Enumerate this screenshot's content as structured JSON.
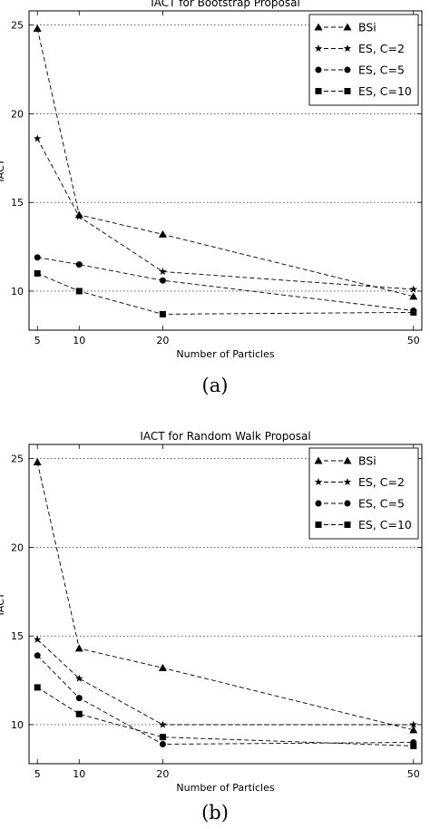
{
  "chart_data": [
    {
      "type": "line",
      "title": "IACT for Bootstrap Proposal",
      "xlabel": "Number of Particles",
      "ylabel": "IACT",
      "x": [
        5,
        10,
        20,
        50
      ],
      "xticks": [
        "5",
        "10",
        "20",
        "50"
      ],
      "yticks": [
        "10",
        "15",
        "20",
        "25"
      ],
      "xlim": [
        4,
        51
      ],
      "ylim": [
        7.8,
        25.8
      ],
      "grid": "horizontal",
      "legend_position": "top-right",
      "caption": "(a)",
      "series": [
        {
          "name": "BSi",
          "marker": "triangle",
          "values": [
            24.8,
            14.3,
            13.2,
            9.7
          ]
        },
        {
          "name": "ES, C=2",
          "marker": "star",
          "values": [
            18.6,
            14.2,
            11.1,
            10.1
          ]
        },
        {
          "name": "ES, C=5",
          "marker": "circle",
          "values": [
            11.9,
            11.5,
            10.6,
            8.9
          ]
        },
        {
          "name": "ES, C=10",
          "marker": "square",
          "values": [
            11.0,
            10.0,
            8.7,
            8.8
          ]
        }
      ]
    },
    {
      "type": "line",
      "title": "IACT for Random Walk Proposal",
      "xlabel": "Number of Particles",
      "ylabel": "IACT",
      "x": [
        5,
        10,
        20,
        50
      ],
      "xticks": [
        "5",
        "10",
        "20",
        "50"
      ],
      "yticks": [
        "10",
        "15",
        "20",
        "25"
      ],
      "xlim": [
        4,
        51
      ],
      "ylim": [
        7.8,
        25.8
      ],
      "grid": "horizontal",
      "legend_position": "top-right",
      "caption": "(b)",
      "series": [
        {
          "name": "BSi",
          "marker": "triangle",
          "values": [
            24.8,
            14.3,
            13.2,
            9.7
          ]
        },
        {
          "name": "ES, C=2",
          "marker": "star",
          "values": [
            14.8,
            12.6,
            10.0,
            10.0
          ]
        },
        {
          "name": "ES, C=5",
          "marker": "circle",
          "values": [
            13.9,
            11.5,
            8.9,
            9.0
          ]
        },
        {
          "name": "ES, C=10",
          "marker": "square",
          "values": [
            12.1,
            10.6,
            9.3,
            8.8
          ]
        }
      ]
    }
  ]
}
